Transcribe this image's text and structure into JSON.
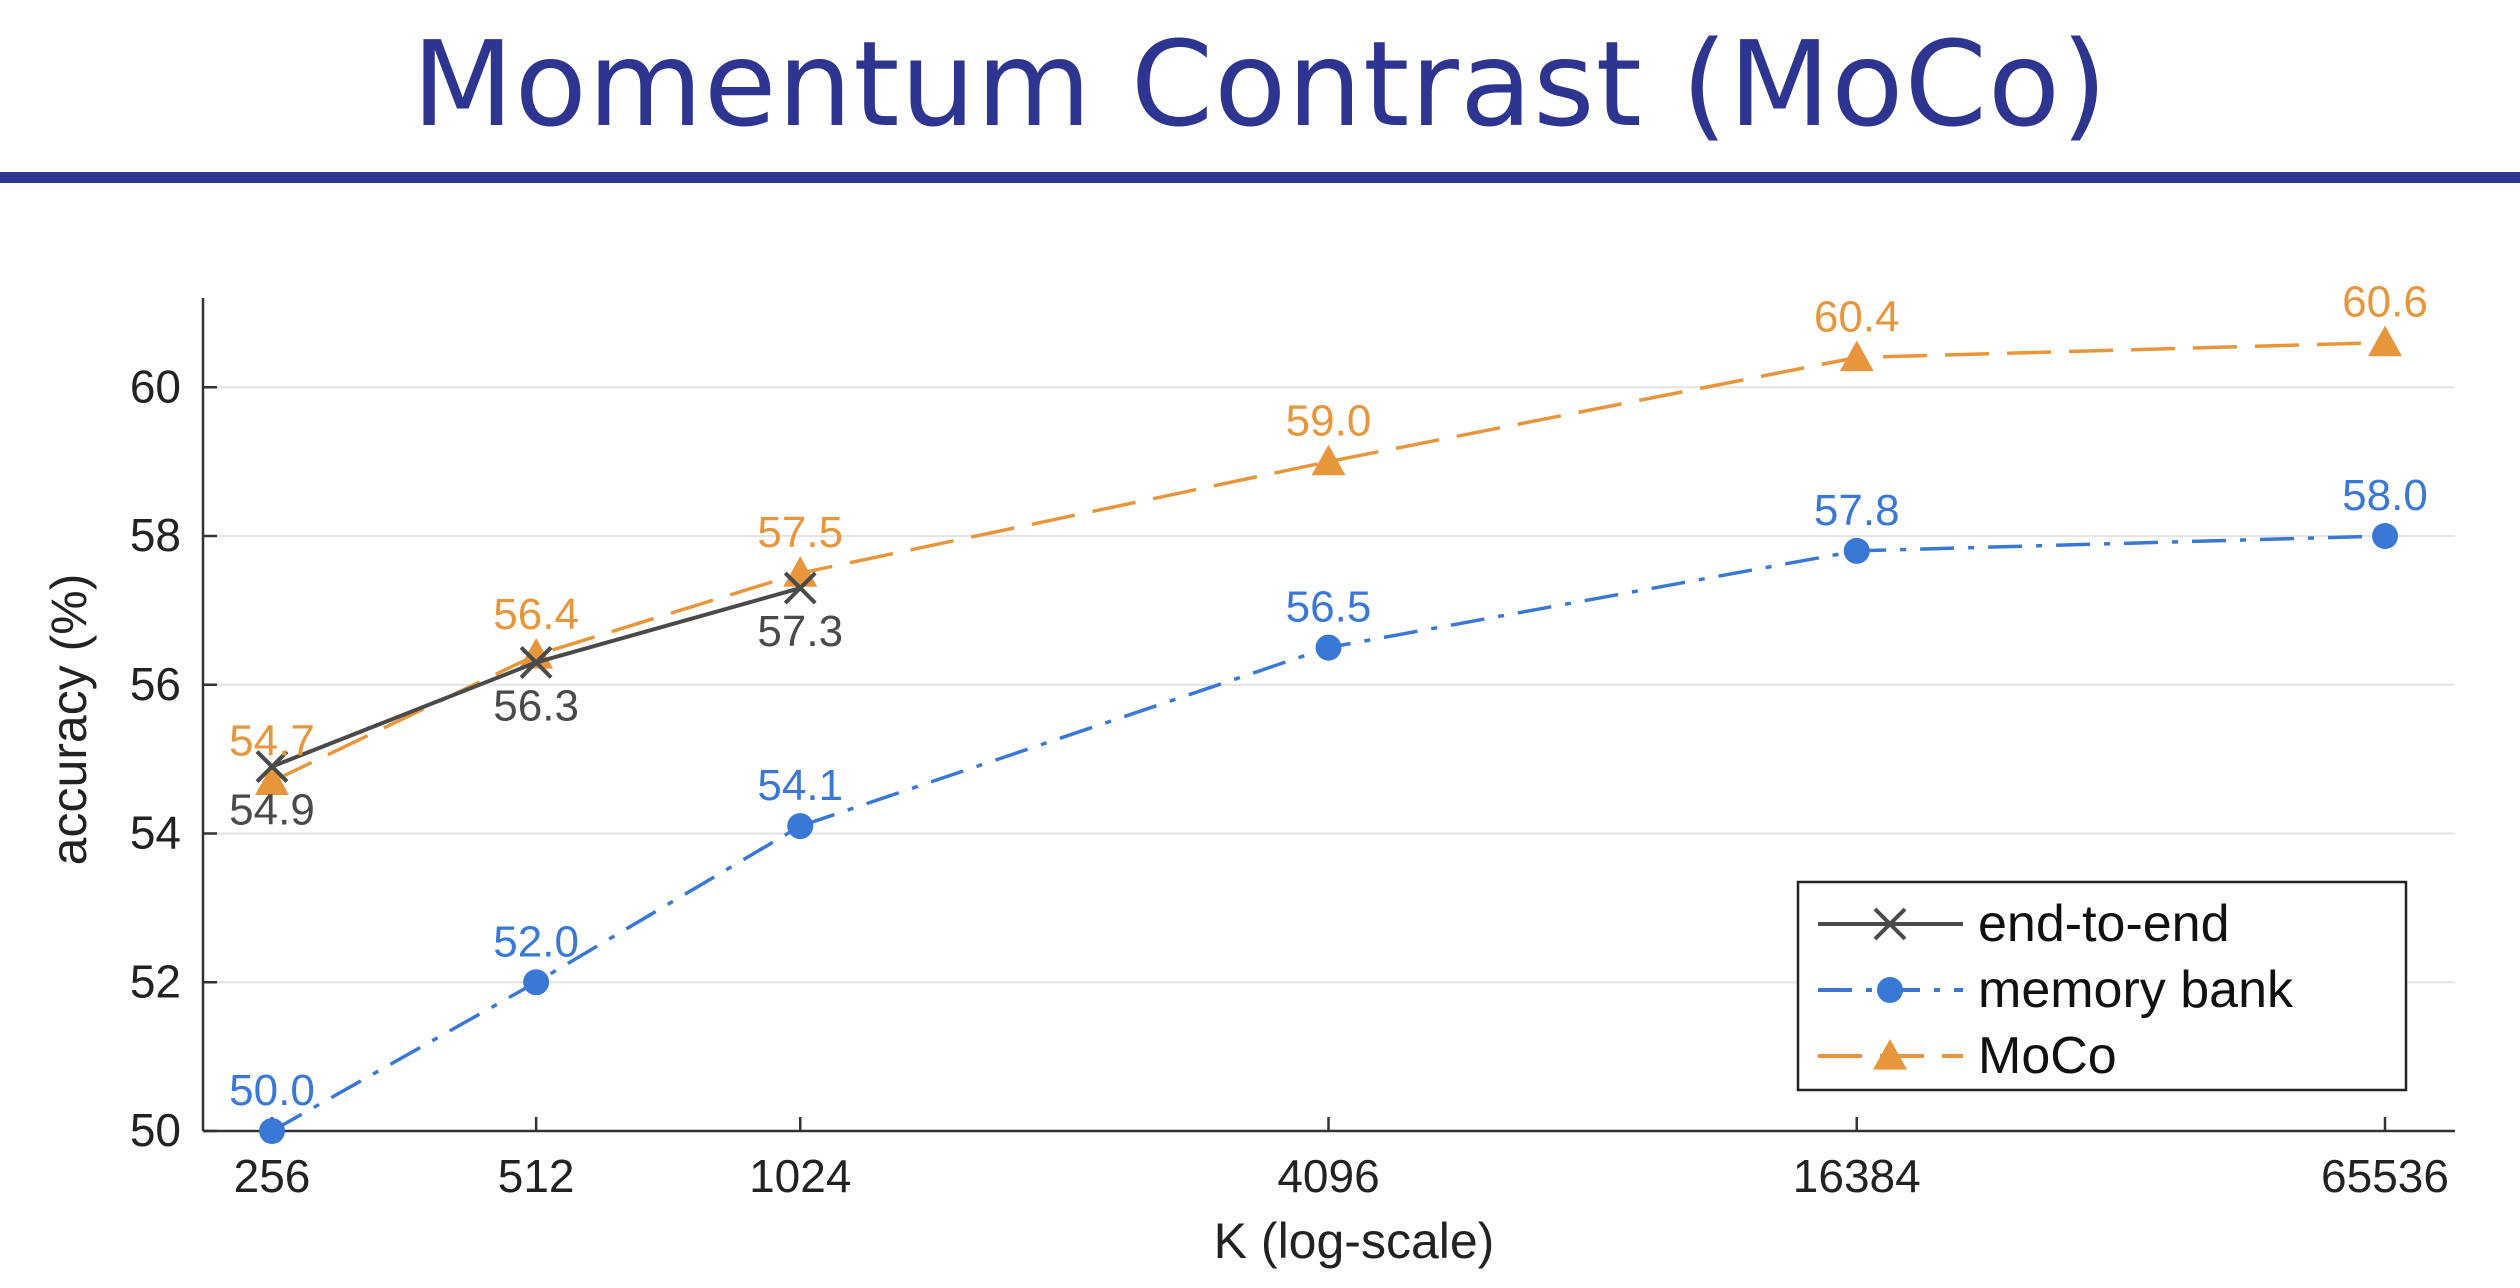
{
  "slide": {
    "title": "Momentum Contrast (MoCo)"
  },
  "colors": {
    "title": "#2e3590",
    "end_to_end": "#4a4a4a",
    "memory_bank": "#3a78d6",
    "moco": "#e8963c",
    "axis": "#333333",
    "grid": "#e4e4e4"
  },
  "chart_data": {
    "type": "line",
    "title": "",
    "xlabel": "K (log-scale)",
    "ylabel": "accuracy (%)",
    "x_scale": "log2",
    "x": [
      256,
      512,
      1024,
      4096,
      16384,
      65536
    ],
    "x_tick_labels": [
      "256",
      "512",
      "1024",
      "4096",
      "16384",
      "65536"
    ],
    "y_ticks": [
      50,
      52,
      54,
      56,
      58,
      60
    ],
    "ylim": [
      50,
      61.2
    ],
    "grid": "horizontal",
    "legend_position": "bottom-right",
    "series": [
      {
        "name": "end-to-end",
        "key": "end_to_end",
        "marker": "x",
        "line_style": "solid",
        "x": [
          256,
          512,
          1024
        ],
        "values": [
          54.9,
          56.3,
          57.3
        ],
        "labels": [
          "54.9",
          "56.3",
          "57.3"
        ],
        "label_side": "below"
      },
      {
        "name": "memory bank",
        "key": "memory_bank",
        "marker": "circle",
        "line_style": "dash-dot",
        "x": [
          256,
          512,
          1024,
          4096,
          16384,
          65536
        ],
        "values": [
          50.0,
          52.0,
          54.1,
          56.5,
          57.8,
          58.0
        ],
        "labels": [
          "50.0",
          "52.0",
          "54.1",
          "56.5",
          "57.8",
          "58.0"
        ],
        "label_side": "above"
      },
      {
        "name": "MoCo",
        "key": "moco",
        "marker": "triangle",
        "line_style": "dashed",
        "x": [
          256,
          512,
          1024,
          4096,
          16384,
          65536
        ],
        "values": [
          54.7,
          56.4,
          57.5,
          59.0,
          60.4,
          60.6
        ],
        "labels": [
          "54.7",
          "56.4",
          "57.5",
          "59.0",
          "60.4",
          "60.6"
        ],
        "label_side": "above"
      }
    ]
  }
}
